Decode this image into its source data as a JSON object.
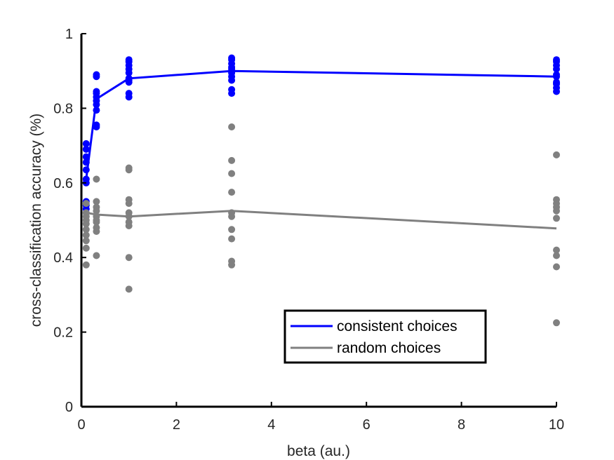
{
  "chart_data": {
    "type": "scatter",
    "title": "",
    "xlabel": "beta (au.)",
    "ylabel": "cross-classification accuracy (%)",
    "xlim": [
      0,
      10
    ],
    "ylim": [
      0,
      1
    ],
    "xticks": [
      0,
      2,
      4,
      6,
      8,
      10
    ],
    "yticks": [
      0,
      0.2,
      0.4,
      0.6,
      0.8,
      1
    ],
    "xtick_labels": [
      "0",
      "2",
      "4",
      "6",
      "8",
      "10"
    ],
    "ytick_labels": [
      "0",
      "0.2",
      "0.4",
      "0.6",
      "0.8",
      "1"
    ],
    "grid": false,
    "legend_position": "bottom-right",
    "x_levels": [
      0.1,
      0.316,
      1,
      3.162,
      10
    ],
    "series": [
      {
        "name": "consistent choices",
        "color": "#0000ff",
        "mean_x": [
          0.1,
          0.316,
          1,
          3.162,
          10
        ],
        "mean_y": [
          0.61,
          0.825,
          0.88,
          0.9,
          0.885
        ],
        "points": [
          [
            0.1,
            0.55
          ],
          [
            0.1,
            0.54
          ],
          [
            0.1,
            0.53
          ],
          [
            0.1,
            0.6
          ],
          [
            0.1,
            0.61
          ],
          [
            0.1,
            0.635
          ],
          [
            0.1,
            0.655
          ],
          [
            0.1,
            0.67
          ],
          [
            0.1,
            0.69
          ],
          [
            0.1,
            0.705
          ],
          [
            0.316,
            0.75
          ],
          [
            0.316,
            0.755
          ],
          [
            0.316,
            0.795
          ],
          [
            0.316,
            0.81
          ],
          [
            0.316,
            0.82
          ],
          [
            0.316,
            0.84
          ],
          [
            0.316,
            0.845
          ],
          [
            0.316,
            0.885
          ],
          [
            0.316,
            0.89
          ],
          [
            0.316,
            0.83
          ],
          [
            1,
            0.83
          ],
          [
            1,
            0.84
          ],
          [
            1,
            0.87
          ],
          [
            1,
            0.875
          ],
          [
            1,
            0.895
          ],
          [
            1,
            0.905
          ],
          [
            1,
            0.915
          ],
          [
            1,
            0.925
          ],
          [
            1,
            0.93
          ],
          [
            1,
            0.88
          ],
          [
            3.162,
            0.84
          ],
          [
            3.162,
            0.85
          ],
          [
            3.162,
            0.875
          ],
          [
            3.162,
            0.885
          ],
          [
            3.162,
            0.895
          ],
          [
            3.162,
            0.905
          ],
          [
            3.162,
            0.91
          ],
          [
            3.162,
            0.92
          ],
          [
            3.162,
            0.93
          ],
          [
            3.162,
            0.935
          ],
          [
            10,
            0.845
          ],
          [
            10,
            0.855
          ],
          [
            10,
            0.865
          ],
          [
            10,
            0.87
          ],
          [
            10,
            0.89
          ],
          [
            10,
            0.905
          ],
          [
            10,
            0.915
          ],
          [
            10,
            0.925
          ],
          [
            10,
            0.93
          ],
          [
            10,
            0.885
          ]
        ]
      },
      {
        "name": "random choices",
        "color": "#808080",
        "mean_x": [
          0.1,
          0.316,
          1,
          3.162,
          10
        ],
        "mean_y": [
          0.52,
          0.515,
          0.51,
          0.525,
          0.478
        ],
        "points": [
          [
            0.1,
            0.38
          ],
          [
            0.1,
            0.425
          ],
          [
            0.1,
            0.445
          ],
          [
            0.1,
            0.46
          ],
          [
            0.1,
            0.475
          ],
          [
            0.1,
            0.49
          ],
          [
            0.1,
            0.5
          ],
          [
            0.1,
            0.51
          ],
          [
            0.1,
            0.52
          ],
          [
            0.1,
            0.545
          ],
          [
            0.316,
            0.405
          ],
          [
            0.316,
            0.47
          ],
          [
            0.316,
            0.48
          ],
          [
            0.316,
            0.5
          ],
          [
            0.316,
            0.51
          ],
          [
            0.316,
            0.525
          ],
          [
            0.316,
            0.535
          ],
          [
            0.316,
            0.55
          ],
          [
            0.316,
            0.61
          ],
          [
            0.316,
            0.495
          ],
          [
            1,
            0.315
          ],
          [
            1,
            0.4
          ],
          [
            1,
            0.485
          ],
          [
            1,
            0.495
          ],
          [
            1,
            0.52
          ],
          [
            1,
            0.545
          ],
          [
            1,
            0.555
          ],
          [
            1,
            0.635
          ],
          [
            1,
            0.64
          ],
          [
            1,
            0.51
          ],
          [
            3.162,
            0.38
          ],
          [
            3.162,
            0.39
          ],
          [
            3.162,
            0.45
          ],
          [
            3.162,
            0.475
          ],
          [
            3.162,
            0.51
          ],
          [
            3.162,
            0.52
          ],
          [
            3.162,
            0.575
          ],
          [
            3.162,
            0.625
          ],
          [
            3.162,
            0.66
          ],
          [
            3.162,
            0.75
          ],
          [
            10,
            0.225
          ],
          [
            10,
            0.375
          ],
          [
            10,
            0.405
          ],
          [
            10,
            0.42
          ],
          [
            10,
            0.505
          ],
          [
            10,
            0.525
          ],
          [
            10,
            0.535
          ],
          [
            10,
            0.545
          ],
          [
            10,
            0.555
          ],
          [
            10,
            0.675
          ]
        ]
      }
    ]
  }
}
